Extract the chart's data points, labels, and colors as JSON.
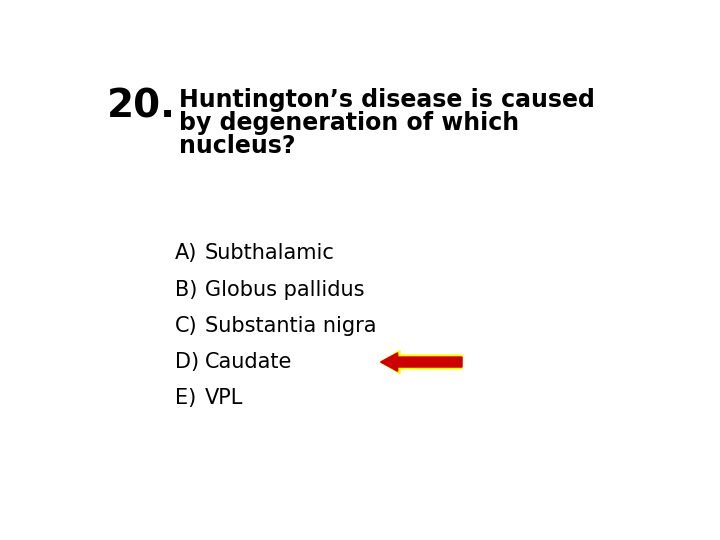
{
  "question_number": "20.",
  "question_text_line1": "Huntington’s disease is caused",
  "question_text_line2": "by degeneration of which",
  "question_text_line3": "nucleus?",
  "options": [
    {
      "label": "A)",
      "text": "Subthalamic",
      "arrow": false
    },
    {
      "label": "B)",
      "text": "Globus pallidus",
      "arrow": false
    },
    {
      "label": "C)",
      "text": "Substantia nigra",
      "arrow": false
    },
    {
      "label": "D)",
      "text": "Caudate",
      "arrow": true
    },
    {
      "label": "E)",
      "text": "VPL",
      "arrow": false
    }
  ],
  "background_color": "#ffffff",
  "text_color": "#000000",
  "arrow_fill_color": "#cc0000",
  "arrow_outline_color": "#ffff00",
  "question_number_fontsize": 28,
  "question_text_fontsize": 17,
  "option_label_fontsize": 15,
  "option_text_fontsize": 15
}
